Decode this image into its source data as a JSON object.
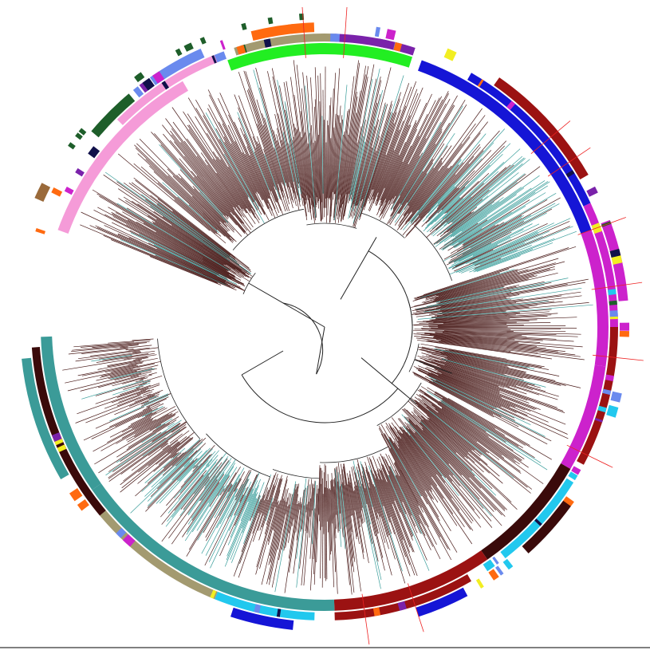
{
  "figure": {
    "kind": "circular-phylogenetic-tree",
    "background": "#ffffff",
    "colors": {
      "branch_main": "#4a1c1a",
      "branch_alt": "#3a9e9b",
      "backbone": "#222222",
      "inner_ring_teal": "#3b9b98",
      "inner_ring_darkred": "#9b1212",
      "ring_blue": "#1515d6",
      "ring_green": "#22ee22",
      "ring_pink": "#f59bd8",
      "ring_magenta": "#cc22cc",
      "ring_olive": "#a39a70",
      "ring_cyan": "#22c8ee",
      "ring_darkbrown": "#3a0a0a",
      "ring_orange": "#ff6a10",
      "ring_purple": "#7a22aa",
      "ring_navy": "#10104a",
      "ring_darkgreen": "#1e5e2a",
      "ring_brown": "#9a6a3a",
      "ring_slate": "#6a8aee",
      "ring_yellow": "#f2ee22",
      "marker_red": "#ee2222"
    }
  }
}
